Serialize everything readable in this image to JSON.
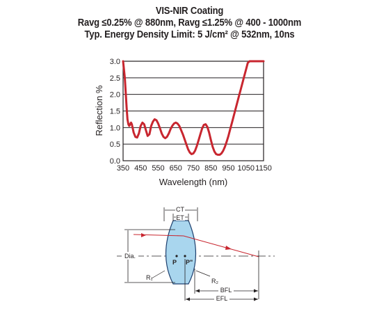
{
  "header": {
    "line1": "VIS-NIR Coating",
    "line2": "Ravg ≤0.25% @ 880nm, Ravg ≤1.25% @ 400 - 1000nm",
    "line3": "Typ. Energy Density Limit: 5 J/cm² @ 532nm, 10ns"
  },
  "colors": {
    "curve": "#c8262f",
    "lens_fill": "#a9d6ee",
    "lens_stroke": "#1d3f6e",
    "ray": "#c8262f"
  },
  "chart_data": {
    "type": "line",
    "xlabel": "Wavelength (nm)",
    "ylabel": "Reflection %",
    "xlim": [
      350,
      1150
    ],
    "ylim": [
      0,
      3.0
    ],
    "grid": true,
    "x_ticks": [
      "350",
      "450",
      "550",
      "650",
      "750",
      "850",
      "950",
      "1050",
      "1150"
    ],
    "y_ticks": [
      "0.0",
      "0.5",
      "1.0",
      "1.5",
      "2.0",
      "2.5",
      "3.0"
    ],
    "series": [
      {
        "x": [
          350,
          360,
          370,
          375,
          380,
          385,
          390,
          395,
          400,
          410,
          420,
          430,
          440,
          450,
          460,
          470,
          480,
          490,
          500,
          510,
          520,
          530,
          540,
          550,
          560,
          570,
          580,
          590,
          600,
          610,
          620,
          630,
          640,
          650,
          660,
          670,
          680,
          690,
          700,
          710,
          720,
          730,
          740,
          750,
          760,
          770,
          780,
          790,
          800,
          810,
          820,
          830,
          840,
          850,
          860,
          870,
          880,
          890,
          900,
          910,
          920,
          930,
          940,
          950,
          960,
          970,
          980,
          990,
          1000,
          1010,
          1020,
          1030,
          1040,
          1050,
          1060,
          1070,
          1080,
          1090,
          1100,
          1110,
          1120,
          1130,
          1140,
          1150
        ],
        "y": [
          3.0,
          2.5,
          1.6,
          1.25,
          1.1,
          1.05,
          1.1,
          1.15,
          1.1,
          0.85,
          0.72,
          0.7,
          0.82,
          1.05,
          1.15,
          1.1,
          0.92,
          0.75,
          0.8,
          1.05,
          1.18,
          1.25,
          1.22,
          1.12,
          0.98,
          0.82,
          0.72,
          0.68,
          0.72,
          0.82,
          0.95,
          1.05,
          1.12,
          1.15,
          1.12,
          1.05,
          0.93,
          0.8,
          0.65,
          0.5,
          0.35,
          0.25,
          0.2,
          0.22,
          0.3,
          0.45,
          0.62,
          0.8,
          0.97,
          1.08,
          1.1,
          1.02,
          0.85,
          0.62,
          0.42,
          0.28,
          0.2,
          0.18,
          0.18,
          0.22,
          0.3,
          0.42,
          0.58,
          0.75,
          0.95,
          1.15,
          1.35,
          1.55,
          1.75,
          1.95,
          2.15,
          2.35,
          2.55,
          2.75,
          2.95,
          3.0,
          3.0,
          3.0,
          3.0,
          3.0,
          3.0,
          3.0,
          3.0,
          3.0
        ]
      }
    ]
  },
  "diagram": {
    "labels": {
      "ct": "CT",
      "et": "ET",
      "dia": "Dia.",
      "p": "P",
      "p2": "P\"",
      "r1": "R₁",
      "r2": "R₂",
      "bfl": "BFL",
      "efl": "EFL"
    }
  }
}
